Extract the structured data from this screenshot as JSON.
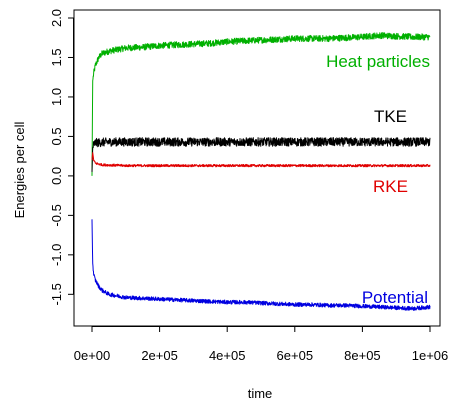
{
  "chart_data": {
    "type": "line",
    "xlabel": "time",
    "ylabel": "Energies per cell",
    "xlim": [
      0,
      1000000
    ],
    "ylim": [
      -1.8,
      2.0
    ],
    "grid": false,
    "x_ticks": [
      {
        "value": 0,
        "label": "0e+00"
      },
      {
        "value": 200000,
        "label": "2e+05"
      },
      {
        "value": 400000,
        "label": "4e+05"
      },
      {
        "value": 600000,
        "label": "6e+05"
      },
      {
        "value": 800000,
        "label": "8e+05"
      },
      {
        "value": 1000000,
        "label": "1e+06"
      }
    ],
    "y_ticks": [
      {
        "value": 2.0,
        "label": "2.0"
      },
      {
        "value": 1.5,
        "label": "1.5"
      },
      {
        "value": 1.0,
        "label": "1.0"
      },
      {
        "value": 0.5,
        "label": "0.5"
      },
      {
        "value": 0.0,
        "label": "0.0"
      },
      {
        "value": -0.5,
        "label": "-0.5"
      },
      {
        "value": -1.0,
        "label": "-1.0"
      },
      {
        "value": -1.5,
        "label": "-1.5"
      }
    ],
    "series": [
      {
        "name": "Heat particles",
        "color": "#00b000",
        "noise": 0.04,
        "x": [
          0,
          2000,
          5000,
          10000,
          20000,
          30000,
          50000,
          75000,
          100000,
          150000,
          200000,
          250000,
          300000,
          350000,
          400000,
          450000,
          500000,
          550000,
          600000,
          650000,
          700000,
          750000,
          800000,
          850000,
          900000,
          950000,
          1000000
        ],
        "values": [
          0.0,
          1.2,
          1.3,
          1.4,
          1.5,
          1.55,
          1.58,
          1.6,
          1.62,
          1.63,
          1.65,
          1.66,
          1.67,
          1.68,
          1.7,
          1.71,
          1.72,
          1.73,
          1.74,
          1.74,
          1.74,
          1.75,
          1.76,
          1.78,
          1.77,
          1.76,
          1.76
        ]
      },
      {
        "name": "TKE",
        "color": "#000000",
        "noise": 0.055,
        "x": [
          0,
          2000,
          5000,
          10000,
          50000,
          100000,
          200000,
          300000,
          400000,
          500000,
          600000,
          700000,
          800000,
          900000,
          1000000
        ],
        "values": [
          0.05,
          0.35,
          0.4,
          0.42,
          0.43,
          0.43,
          0.43,
          0.43,
          0.43,
          0.43,
          0.43,
          0.43,
          0.43,
          0.43,
          0.43
        ]
      },
      {
        "name": "RKE",
        "color": "#e00000",
        "noise": 0.015,
        "x": [
          0,
          2000,
          5000,
          10000,
          30000,
          100000,
          200000,
          300000,
          400000,
          500000,
          600000,
          700000,
          800000,
          900000,
          1000000
        ],
        "values": [
          0.2,
          0.3,
          0.2,
          0.16,
          0.14,
          0.13,
          0.13,
          0.13,
          0.13,
          0.13,
          0.13,
          0.13,
          0.13,
          0.13,
          0.13
        ]
      },
      {
        "name": "Potential",
        "color": "#0000e0",
        "noise": 0.025,
        "x": [
          0,
          2000,
          5000,
          10000,
          20000,
          30000,
          50000,
          75000,
          100000,
          150000,
          200000,
          250000,
          300000,
          350000,
          400000,
          450000,
          500000,
          550000,
          600000,
          650000,
          700000,
          750000,
          800000,
          850000,
          900000,
          950000,
          1000000
        ],
        "values": [
          -0.55,
          -1.1,
          -1.25,
          -1.32,
          -1.4,
          -1.45,
          -1.5,
          -1.52,
          -1.54,
          -1.55,
          -1.56,
          -1.57,
          -1.58,
          -1.59,
          -1.6,
          -1.6,
          -1.61,
          -1.62,
          -1.63,
          -1.63,
          -1.64,
          -1.64,
          -1.65,
          -1.66,
          -1.67,
          -1.68,
          -1.66
        ]
      }
    ]
  }
}
